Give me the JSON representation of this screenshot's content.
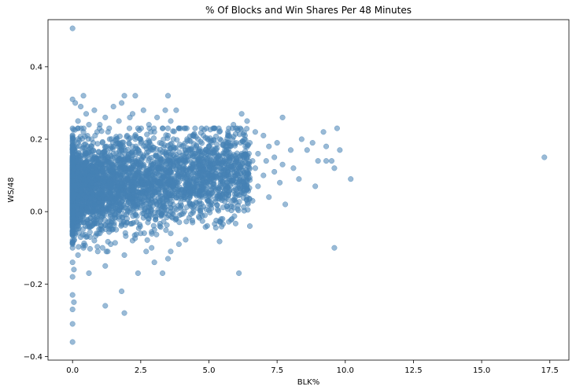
{
  "chart_data": {
    "type": "scatter",
    "title": "% Of Blocks and Win Shares Per 48 Minutes",
    "xlabel": "BLK%",
    "ylabel": "WS/48",
    "xlim": [
      -0.9,
      18.2
    ],
    "ylim": [
      -0.41,
      0.53
    ],
    "xticks": [
      0.0,
      2.5,
      5.0,
      7.5,
      10.0,
      12.5,
      15.0,
      17.5
    ],
    "xtick_labels": [
      "0.0",
      "2.5",
      "5.0",
      "7.5",
      "10.0",
      "12.5",
      "15.0",
      "17.5"
    ],
    "yticks": [
      -0.4,
      -0.2,
      0.0,
      0.2,
      0.4
    ],
    "ytick_labels": [
      "−0.4",
      "−0.2",
      "0.0",
      "0.2",
      "0.4"
    ],
    "grid": false,
    "marker_color": "#4682b4",
    "marker_alpha": 0.55,
    "points": [
      [
        0.0,
        0.506
      ],
      [
        0.0,
        0.31
      ],
      [
        0.0,
        0.2
      ],
      [
        0.0,
        0.15
      ],
      [
        0.0,
        0.1
      ],
      [
        0.0,
        0.05
      ],
      [
        0.0,
        0.0
      ],
      [
        0.0,
        -0.05
      ],
      [
        0.0,
        -0.1
      ],
      [
        0.0,
        -0.14
      ],
      [
        0.0,
        -0.18
      ],
      [
        0.0,
        -0.23
      ],
      [
        0.0,
        -0.27
      ],
      [
        0.0,
        -0.31
      ],
      [
        0.0,
        -0.36
      ],
      [
        0.05,
        0.18
      ],
      [
        0.05,
        0.12
      ],
      [
        0.05,
        -0.02
      ],
      [
        0.05,
        -0.08
      ],
      [
        0.05,
        -0.16
      ],
      [
        0.05,
        -0.25
      ],
      [
        0.1,
        0.3
      ],
      [
        0.1,
        0.07
      ],
      [
        0.1,
        -0.06
      ],
      [
        0.2,
        0.25
      ],
      [
        0.2,
        0.19
      ],
      [
        0.2,
        0.11
      ],
      [
        0.2,
        0.03
      ],
      [
        0.2,
        -0.04
      ],
      [
        0.2,
        -0.12
      ],
      [
        0.3,
        0.29
      ],
      [
        0.3,
        0.14
      ],
      [
        0.3,
        0.06
      ],
      [
        0.3,
        -0.02
      ],
      [
        0.4,
        0.32
      ],
      [
        0.4,
        0.22
      ],
      [
        0.4,
        0.09
      ],
      [
        0.4,
        -0.03
      ],
      [
        0.4,
        -0.1
      ],
      [
        0.5,
        0.27
      ],
      [
        0.5,
        0.16
      ],
      [
        0.5,
        0.04
      ],
      [
        0.5,
        -0.07
      ],
      [
        0.6,
        0.24
      ],
      [
        0.6,
        0.12
      ],
      [
        0.6,
        0.0
      ],
      [
        0.6,
        -0.17
      ],
      [
        0.7,
        0.2
      ],
      [
        0.7,
        0.08
      ],
      [
        0.7,
        -0.04
      ],
      [
        0.8,
        0.28
      ],
      [
        0.8,
        0.15
      ],
      [
        0.8,
        0.02
      ],
      [
        0.8,
        -0.08
      ],
      [
        0.9,
        0.22
      ],
      [
        0.9,
        0.1
      ],
      [
        0.9,
        -0.02
      ],
      [
        1.0,
        0.24
      ],
      [
        1.0,
        0.13
      ],
      [
        1.0,
        0.05
      ],
      [
        1.0,
        -0.06
      ],
      [
        1.1,
        0.19
      ],
      [
        1.1,
        0.07
      ],
      [
        1.1,
        -0.1
      ],
      [
        1.2,
        0.26
      ],
      [
        1.2,
        0.14
      ],
      [
        1.2,
        0.01
      ],
      [
        1.2,
        -0.15
      ],
      [
        1.2,
        -0.26
      ],
      [
        1.3,
        0.22
      ],
      [
        1.3,
        0.09
      ],
      [
        1.3,
        -0.04
      ],
      [
        1.4,
        0.18
      ],
      [
        1.4,
        0.05
      ],
      [
        1.4,
        -0.09
      ],
      [
        1.5,
        0.29
      ],
      [
        1.5,
        0.16
      ],
      [
        1.5,
        0.03
      ],
      [
        1.6,
        0.2
      ],
      [
        1.6,
        0.11
      ],
      [
        1.6,
        -0.05
      ],
      [
        1.7,
        0.25
      ],
      [
        1.7,
        0.08
      ],
      [
        1.7,
        -0.02
      ],
      [
        1.8,
        0.3
      ],
      [
        1.8,
        0.17
      ],
      [
        1.8,
        0.04
      ],
      [
        1.8,
        -0.22
      ],
      [
        1.9,
        0.32
      ],
      [
        1.9,
        0.12
      ],
      [
        1.9,
        -0.12
      ],
      [
        1.9,
        -0.28
      ],
      [
        2.0,
        0.21
      ],
      [
        2.0,
        0.09
      ],
      [
        2.0,
        -0.03
      ],
      [
        2.1,
        0.26
      ],
      [
        2.1,
        0.14
      ],
      [
        2.1,
        0.01
      ],
      [
        2.2,
        0.27
      ],
      [
        2.2,
        0.18
      ],
      [
        2.2,
        0.06
      ],
      [
        2.2,
        -0.08
      ],
      [
        2.3,
        0.32
      ],
      [
        2.3,
        0.1
      ],
      [
        2.3,
        -0.01
      ],
      [
        2.4,
        0.23
      ],
      [
        2.4,
        0.13
      ],
      [
        2.4,
        -0.17
      ],
      [
        2.5,
        0.2
      ],
      [
        2.5,
        0.08
      ],
      [
        2.5,
        -0.06
      ],
      [
        2.6,
        0.28
      ],
      [
        2.6,
        0.15
      ],
      [
        2.6,
        0.03
      ],
      [
        2.7,
        0.19
      ],
      [
        2.7,
        0.11
      ],
      [
        2.7,
        -0.11
      ],
      [
        2.8,
        0.24
      ],
      [
        2.8,
        0.07
      ],
      [
        2.8,
        -0.02
      ],
      [
        2.9,
        0.17
      ],
      [
        2.9,
        0.12
      ],
      [
        2.9,
        -0.1
      ],
      [
        3.0,
        0.22
      ],
      [
        3.0,
        0.09
      ],
      [
        3.0,
        -0.05
      ],
      [
        3.0,
        -0.14
      ],
      [
        3.1,
        0.26
      ],
      [
        3.1,
        0.14
      ],
      [
        3.1,
        0.02
      ],
      [
        3.2,
        0.19
      ],
      [
        3.2,
        0.08
      ],
      [
        3.2,
        -0.04
      ],
      [
        3.3,
        0.23
      ],
      [
        3.3,
        0.12
      ],
      [
        3.3,
        -0.17
      ],
      [
        3.4,
        0.28
      ],
      [
        3.4,
        0.16
      ],
      [
        3.4,
        0.05
      ],
      [
        3.5,
        0.32
      ],
      [
        3.5,
        0.21
      ],
      [
        3.5,
        0.1
      ],
      [
        3.5,
        -0.13
      ],
      [
        3.6,
        0.25
      ],
      [
        3.6,
        0.13
      ],
      [
        3.6,
        -0.06
      ],
      [
        3.7,
        0.2
      ],
      [
        3.7,
        0.07
      ],
      [
        3.8,
        0.28
      ],
      [
        3.8,
        0.15
      ],
      [
        3.8,
        -0.02
      ],
      [
        3.9,
        0.23
      ],
      [
        3.9,
        0.11
      ],
      [
        3.9,
        -0.09
      ],
      [
        4.0,
        0.18
      ],
      [
        4.0,
        0.06
      ],
      [
        4.1,
        0.23
      ],
      [
        4.1,
        0.14
      ],
      [
        4.1,
        0.0
      ],
      [
        4.2,
        0.2
      ],
      [
        4.2,
        0.09
      ],
      [
        4.3,
        0.17
      ],
      [
        4.3,
        0.04
      ],
      [
        4.4,
        0.21
      ],
      [
        4.4,
        0.12
      ],
      [
        4.4,
        -0.03
      ],
      [
        4.5,
        0.16
      ],
      [
        4.5,
        0.07
      ],
      [
        4.6,
        0.2
      ],
      [
        4.6,
        0.1
      ],
      [
        4.7,
        0.13
      ],
      [
        4.7,
        0.01
      ],
      [
        4.8,
        0.21
      ],
      [
        4.8,
        0.08
      ],
      [
        4.9,
        0.17
      ],
      [
        4.9,
        0.05
      ],
      [
        5.0,
        0.14
      ],
      [
        5.0,
        0.03
      ],
      [
        5.1,
        0.19
      ],
      [
        5.1,
        0.09
      ],
      [
        5.2,
        0.23
      ],
      [
        5.2,
        0.12
      ],
      [
        5.3,
        0.16
      ],
      [
        5.3,
        0.04
      ],
      [
        5.4,
        0.2
      ],
      [
        5.4,
        0.1
      ],
      [
        5.5,
        0.14
      ],
      [
        5.5,
        -0.02
      ],
      [
        5.6,
        0.18
      ],
      [
        5.6,
        0.07
      ],
      [
        5.7,
        0.22
      ],
      [
        5.7,
        0.11
      ],
      [
        5.8,
        0.15
      ],
      [
        5.8,
        0.02
      ],
      [
        5.9,
        0.24
      ],
      [
        5.9,
        0.09
      ],
      [
        6.0,
        0.19
      ],
      [
        6.0,
        0.06
      ],
      [
        6.1,
        0.13
      ],
      [
        6.1,
        -0.17
      ],
      [
        6.2,
        0.27
      ],
      [
        6.2,
        0.16
      ],
      [
        6.2,
        0.08
      ],
      [
        6.3,
        0.2
      ],
      [
        6.3,
        0.05
      ],
      [
        6.4,
        0.25
      ],
      [
        6.4,
        0.11
      ],
      [
        6.5,
        0.19
      ],
      [
        6.5,
        -0.04
      ],
      [
        6.6,
        0.14
      ],
      [
        6.6,
        0.03
      ],
      [
        6.7,
        0.22
      ],
      [
        6.7,
        0.12
      ],
      [
        6.8,
        0.16
      ],
      [
        6.8,
        0.07
      ],
      [
        7.0,
        0.21
      ],
      [
        7.0,
        0.1
      ],
      [
        7.1,
        0.14
      ],
      [
        7.2,
        0.18
      ],
      [
        7.2,
        0.04
      ],
      [
        7.4,
        0.15
      ],
      [
        7.4,
        0.11
      ],
      [
        7.5,
        0.19
      ],
      [
        7.6,
        0.08
      ],
      [
        7.7,
        0.26
      ],
      [
        7.7,
        0.13
      ],
      [
        7.8,
        0.02
      ],
      [
        8.0,
        0.17
      ],
      [
        8.1,
        0.12
      ],
      [
        8.3,
        0.09
      ],
      [
        8.4,
        0.2
      ],
      [
        8.6,
        0.17
      ],
      [
        8.8,
        0.19
      ],
      [
        8.9,
        0.07
      ],
      [
        9.0,
        0.14
      ],
      [
        9.2,
        0.22
      ],
      [
        9.3,
        0.18
      ],
      [
        9.3,
        0.14
      ],
      [
        9.5,
        0.14
      ],
      [
        9.6,
        0.12
      ],
      [
        9.6,
        -0.1
      ],
      [
        9.7,
        0.23
      ],
      [
        9.8,
        0.17
      ],
      [
        10.2,
        0.09
      ],
      [
        17.3,
        0.15
      ]
    ],
    "dense_cluster": {
      "count": 3400,
      "x_range": [
        0.0,
        6.5
      ],
      "y_center": 0.07,
      "y_spread": 0.06,
      "seed": 7
    }
  }
}
